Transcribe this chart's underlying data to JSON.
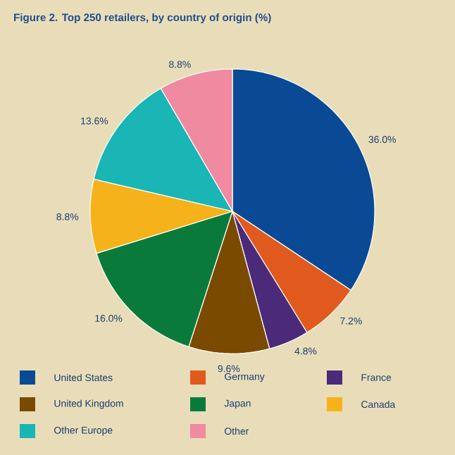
{
  "chart_data": {
    "type": "pie",
    "title": "Figure 2. Top 250 retailers, by country of origin (%)",
    "categories": [
      "United States",
      "Germany",
      "France",
      "United Kingdom",
      "Japan",
      "Canada",
      "Other Europe",
      "Other"
    ],
    "values": [
      36.0,
      7.2,
      4.8,
      9.6,
      16.0,
      8.8,
      13.6,
      8.8
    ],
    "value_labels": [
      "36.0%",
      "7.2%",
      "4.8%",
      "9.6%",
      "16.0%",
      "8.8%",
      "13.6%",
      "8.8%"
    ],
    "colors": [
      "#0a4a94",
      "#e05a1e",
      "#4b2a7a",
      "#7a4a00",
      "#0a7a3a",
      "#f5b21a",
      "#1ab5b5",
      "#f08aa0"
    ],
    "legend": "bottom"
  }
}
